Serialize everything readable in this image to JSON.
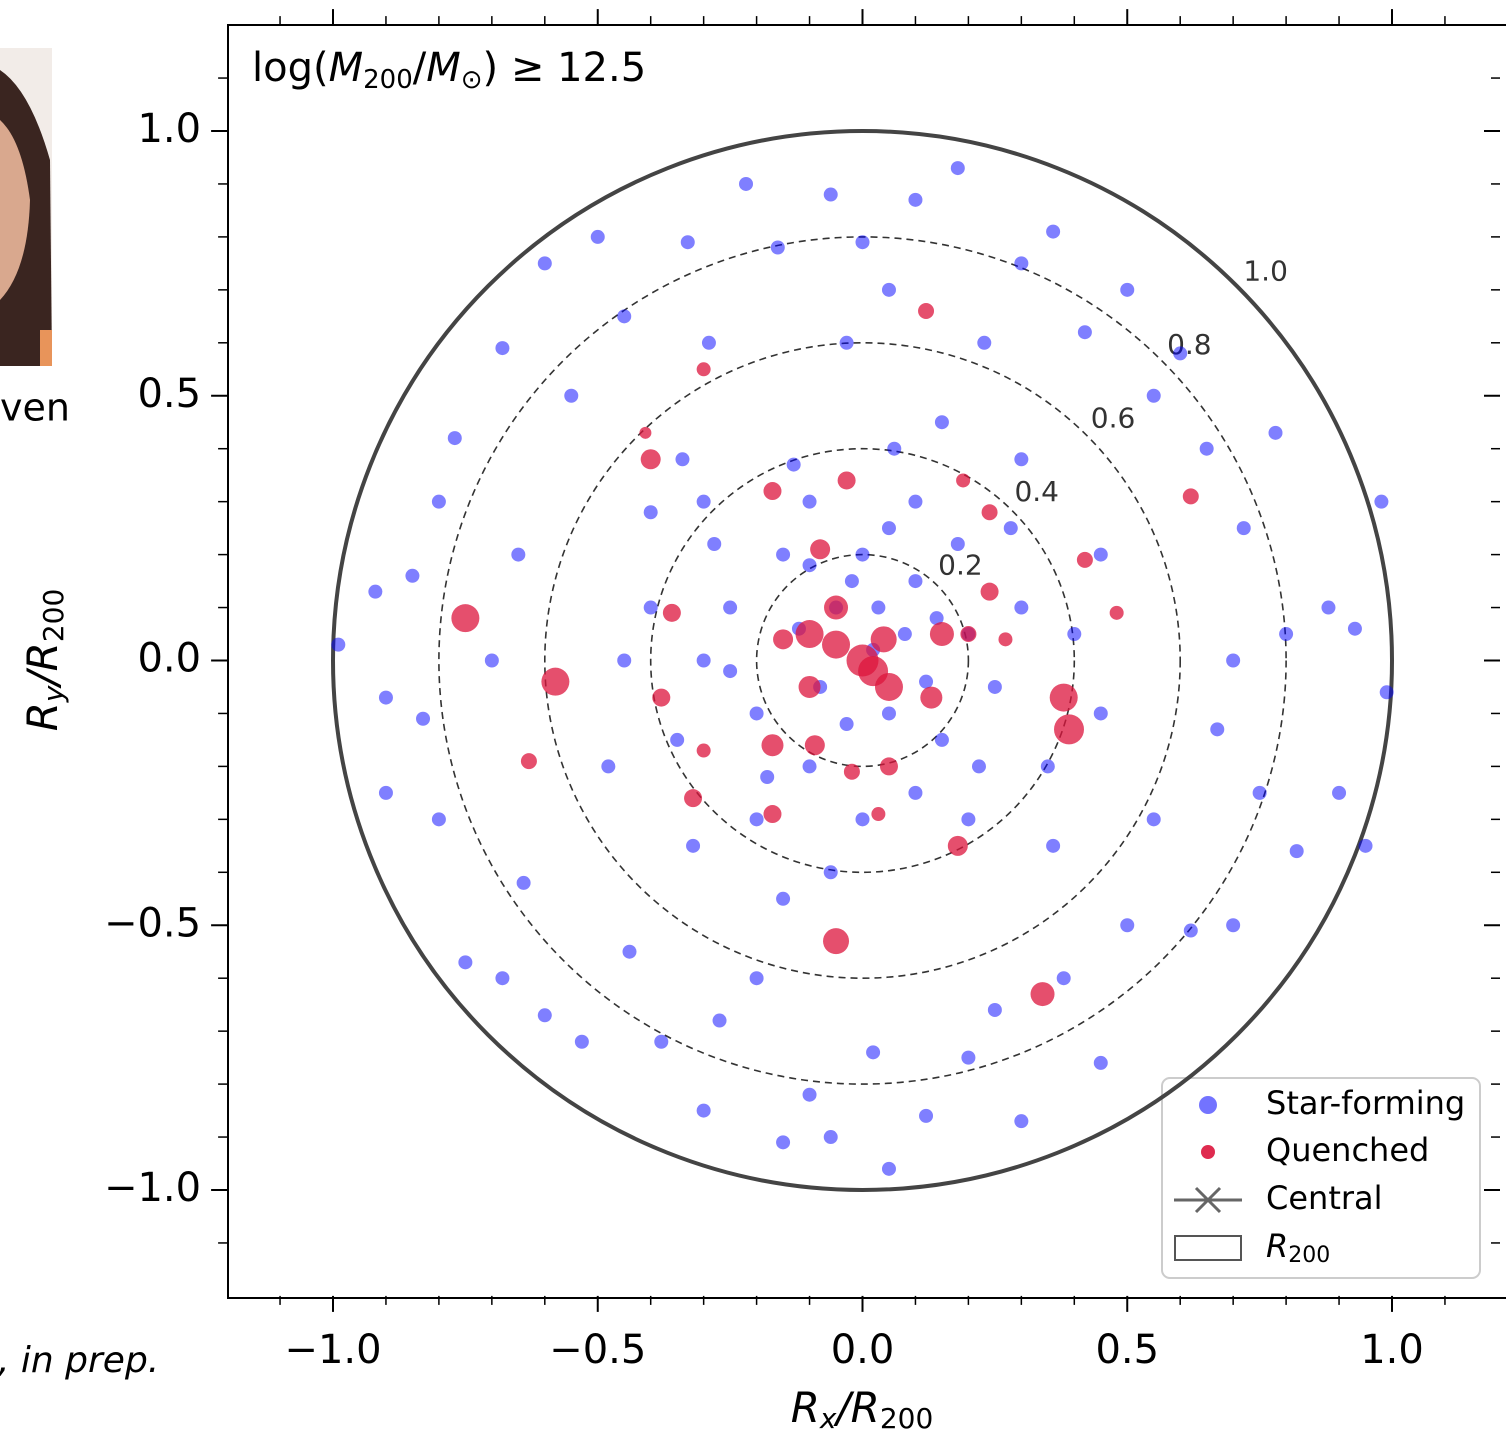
{
  "side_text": {
    "name_fragment": "ven",
    "citation_fragment": ", in prep."
  },
  "chart_data": {
    "type": "scatter",
    "annotation": {
      "prefix": "log(",
      "m1": "M",
      "s1": "200",
      "slash": "/",
      "m2": "M",
      "s2": "⊙",
      "suffix": ") ≥ 12.5"
    },
    "x_label": {
      "main": "R",
      "sub": "x",
      "rest": "/R",
      "sub2": "200"
    },
    "y_label": {
      "main": "R",
      "sub": "y",
      "rest": "/R",
      "sub2": "200"
    },
    "xlim": [
      -1.2,
      1.2
    ],
    "ylim": [
      -1.2,
      1.2
    ],
    "xticks": [
      {
        "value": -1.0,
        "label": "−1.0"
      },
      {
        "value": -0.5,
        "label": "−0.5"
      },
      {
        "value": 0.0,
        "label": "0.0"
      },
      {
        "value": 0.5,
        "label": "0.5"
      },
      {
        "value": 1.0,
        "label": "1.0"
      }
    ],
    "yticks": [
      {
        "value": -1.0,
        "label": "−1.0"
      },
      {
        "value": -0.5,
        "label": "−0.5"
      },
      {
        "value": 0.0,
        "label": "0.0"
      },
      {
        "value": 0.5,
        "label": "0.5"
      },
      {
        "value": 1.0,
        "label": "1.0"
      }
    ],
    "minor_xticks": [
      -1.1,
      -0.9,
      -0.8,
      -0.7,
      -0.6,
      -0.4,
      -0.3,
      -0.2,
      -0.1,
      0.1,
      0.2,
      0.3,
      0.4,
      0.6,
      0.7,
      0.8,
      0.9,
      1.1
    ],
    "minor_yticks": [
      -1.1,
      -0.9,
      -0.8,
      -0.7,
      -0.6,
      -0.4,
      -0.3,
      -0.2,
      -0.1,
      0.1,
      0.2,
      0.3,
      0.4,
      0.6,
      0.7,
      0.8,
      0.9,
      1.1
    ],
    "rings": [
      0.2,
      0.4,
      0.6,
      0.8,
      {
        "value": 1.0,
        "label": "1.0"
      }
    ],
    "legend_position": "lower right",
    "series": [
      {
        "name": "Star-forming",
        "color": "#0000ff",
        "x": [
          -0.99,
          -0.92,
          -0.9,
          -0.85,
          -0.83,
          -0.8,
          -0.8,
          -0.77,
          -0.75,
          -0.68,
          -0.68,
          -0.65,
          -0.64,
          -0.6,
          -0.6,
          -0.55,
          -0.53,
          -0.5,
          -0.48,
          -0.45,
          -0.44,
          -0.4,
          -0.38,
          -0.33,
          -0.3,
          -0.29,
          -0.27,
          -0.22,
          -0.2,
          -0.16,
          -0.15,
          -0.13,
          -0.1,
          -0.06,
          -0.06,
          -0.03,
          0.0,
          0.02,
          0.05,
          0.05,
          0.1,
          0.12,
          0.18,
          0.2,
          0.23,
          0.25,
          0.3,
          0.3,
          0.36,
          0.38,
          0.42,
          0.45,
          0.5,
          0.5,
          0.55,
          0.55,
          0.6,
          0.62,
          0.65,
          0.67,
          0.72,
          0.75,
          0.78,
          0.8,
          0.82,
          0.88,
          0.9,
          0.93,
          0.95,
          0.98,
          0.99,
          0.7,
          -0.9,
          -0.7,
          0.7,
          0.45,
          -0.3,
          -0.3,
          -0.25,
          -0.2,
          -0.15,
          -0.1,
          -0.05,
          0.0,
          0.05,
          0.1,
          0.15,
          0.2,
          0.25,
          0.3,
          0.1,
          -0.1,
          0.0,
          0.2,
          -0.2,
          0.35,
          -0.35,
          0.08,
          -0.08,
          0.03,
          -0.03,
          0.12,
          -0.12,
          0.18,
          -0.18,
          0.28,
          -0.28,
          0.22,
          -0.25,
          0.4,
          -0.4,
          0.06,
          -0.06,
          0.15,
          -0.15,
          0.45,
          -0.45,
          0.3,
          -0.32,
          0.36,
          -0.34,
          0.02,
          0.1,
          -0.1,
          0.05,
          0.14,
          -0.02
        ],
        "y": [
          0.03,
          0.13,
          -0.07,
          0.16,
          -0.11,
          0.3,
          -0.3,
          0.42,
          -0.57,
          0.59,
          -0.6,
          0.2,
          -0.42,
          0.75,
          -0.67,
          0.5,
          -0.72,
          0.8,
          -0.2,
          0.65,
          -0.55,
          0.28,
          -0.72,
          0.79,
          -0.85,
          0.6,
          -0.68,
          0.9,
          -0.6,
          0.78,
          -0.91,
          0.37,
          -0.82,
          0.88,
          -0.9,
          0.6,
          0.79,
          -0.74,
          0.7,
          -0.96,
          0.87,
          -0.86,
          0.93,
          -0.75,
          0.6,
          -0.66,
          0.75,
          -0.87,
          0.81,
          -0.6,
          0.62,
          -0.76,
          0.7,
          -0.5,
          0.5,
          -0.3,
          0.58,
          -0.51,
          0.4,
          -0.13,
          0.25,
          -0.25,
          0.43,
          0.05,
          -0.36,
          0.1,
          -0.25,
          0.06,
          -0.35,
          0.3,
          -0.06,
          -0.5,
          -0.25,
          0.0,
          0.0,
          0.2,
          0.3,
          0.0,
          0.1,
          -0.1,
          0.2,
          -0.2,
          0.1,
          0.2,
          -0.1,
          0.15,
          -0.15,
          0.05,
          -0.05,
          0.1,
          0.3,
          0.3,
          -0.3,
          -0.3,
          -0.3,
          -0.2,
          -0.15,
          0.05,
          -0.05,
          0.1,
          -0.12,
          -0.04,
          0.06,
          0.22,
          -0.22,
          0.25,
          0.22,
          -0.2,
          -0.02,
          0.05,
          0.1,
          0.4,
          -0.4,
          0.45,
          -0.45,
          -0.1,
          0.0,
          0.38,
          -0.35,
          -0.35,
          0.38,
          0.02,
          -0.25,
          0.18,
          0.25,
          0.08,
          0.15
        ]
      },
      {
        "name": "Quenched",
        "color": "#dc143c",
        "x": [
          0.0,
          0.02,
          -0.05,
          0.04,
          -0.1,
          0.05,
          0.15,
          -0.05,
          -0.1,
          0.2,
          -0.15,
          0.13,
          -0.75,
          -0.58,
          -0.4,
          -0.17,
          -0.08,
          -0.36,
          -0.38,
          -0.17,
          -0.09,
          -0.03,
          0.12,
          0.19,
          0.24,
          0.24,
          0.42,
          0.48,
          0.62,
          0.38,
          0.39,
          0.18,
          0.34,
          -0.05,
          -0.17,
          -0.32,
          -0.63,
          -0.3,
          0.05,
          0.03,
          -0.02,
          0.27,
          -0.41,
          -0.3
        ],
        "y": [
          0.0,
          -0.02,
          0.03,
          0.04,
          0.05,
          -0.05,
          0.05,
          0.1,
          -0.05,
          0.05,
          0.04,
          -0.07,
          0.08,
          -0.04,
          0.38,
          0.32,
          0.21,
          0.09,
          -0.07,
          -0.16,
          -0.16,
          0.34,
          0.66,
          0.34,
          0.28,
          0.13,
          0.19,
          0.09,
          0.31,
          -0.07,
          -0.13,
          -0.35,
          -0.63,
          -0.53,
          -0.29,
          -0.26,
          -0.19,
          0.55,
          -0.2,
          -0.29,
          -0.21,
          0.04,
          0.43,
          -0.17
        ],
        "sizes": [
          16,
          15,
          14,
          13,
          14,
          14,
          12,
          12,
          11,
          8,
          10,
          11,
          14,
          14,
          10,
          9,
          10,
          9,
          9,
          11,
          10,
          9,
          8,
          7,
          8,
          9,
          8,
          7,
          8,
          14,
          15,
          10,
          12,
          13,
          9,
          9,
          8,
          7,
          9,
          7,
          8,
          7,
          6,
          7
        ]
      }
    ],
    "legend_extra": [
      {
        "name": "Central"
      },
      {
        "name": {
          "main": "R",
          "sub": "200"
        }
      }
    ]
  }
}
